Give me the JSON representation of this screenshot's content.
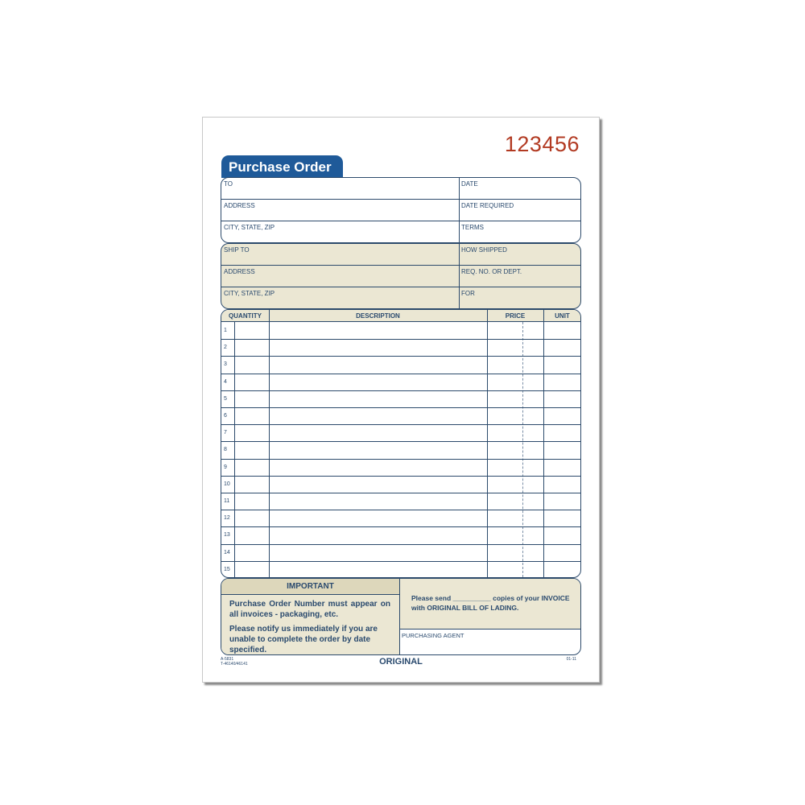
{
  "form_number": "123456",
  "title": "Purchase Order",
  "vendor_section": {
    "left": [
      "TO",
      "ADDRESS",
      "CITY, STATE, ZIP"
    ],
    "right": [
      "DATE",
      "DATE REQUIRED",
      "TERMS"
    ]
  },
  "ship_section": {
    "left": [
      "SHIP TO",
      "ADDRESS",
      "CITY, STATE, ZIP"
    ],
    "right": [
      "HOW SHIPPED",
      "REQ. NO. OR DEPT.",
      "FOR"
    ]
  },
  "table": {
    "headers": [
      "QUANTITY",
      "DESCRIPTION",
      "PRICE",
      "UNIT"
    ],
    "row_numbers": [
      "1",
      "2",
      "3",
      "4",
      "5",
      "6",
      "7",
      "8",
      "9",
      "10",
      "11",
      "12",
      "13",
      "14",
      "15"
    ]
  },
  "important": {
    "heading": "IMPORTANT",
    "line1": "Purchase Order Number must appear on all invoices - packaging, etc.",
    "line2": "Please notify us immediately if you are unable to complete the order by date specified."
  },
  "invoice_note": "Please send __________ copies of your INVOICE with ORIGINAL BILL OF LADING.",
  "purchasing_agent": "PURCHASING AGENT",
  "footer": {
    "code1": "A-5831",
    "code2": "T-46140/46141",
    "copy": "ORIGINAL",
    "date_code": "01-11"
  },
  "colors": {
    "blue": "#1f5a99",
    "red": "#b23a22",
    "beige": "#ebe7d3",
    "line": "#2c4a6b"
  }
}
